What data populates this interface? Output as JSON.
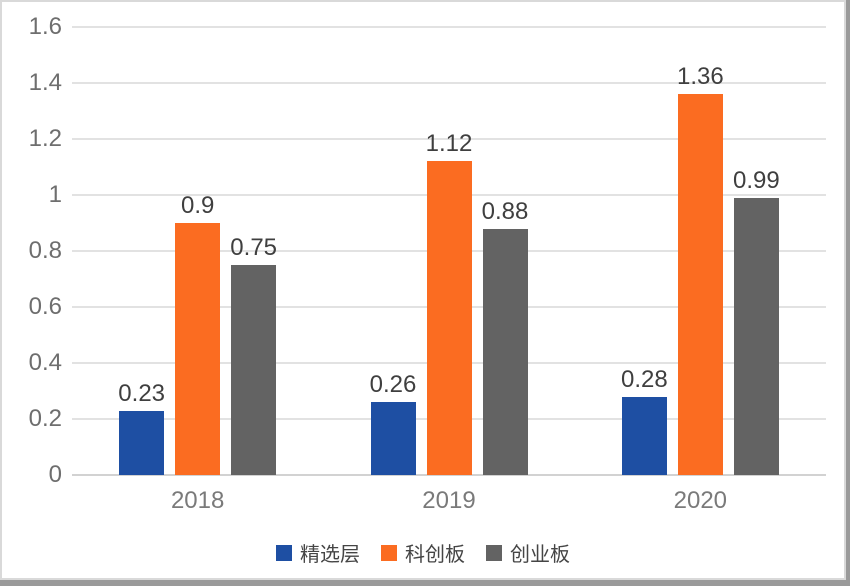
{
  "chart_data": {
    "type": "bar",
    "title": "",
    "xlabel": "",
    "ylabel": "",
    "categories": [
      "2018",
      "2019",
      "2020"
    ],
    "series": [
      {
        "name": "精选层",
        "color": "#1E4FA3",
        "values": [
          0.23,
          0.26,
          0.28
        ],
        "labels": [
          "0.23",
          "0.26",
          "0.28"
        ]
      },
      {
        "name": "科创板",
        "color": "#FB6C21",
        "values": [
          0.9,
          1.12,
          1.36
        ],
        "labels": [
          "0.9",
          "1.12",
          "1.36"
        ]
      },
      {
        "name": "创业板",
        "color": "#636363",
        "values": [
          0.75,
          0.88,
          0.99
        ],
        "labels": [
          "0.75",
          "0.88",
          "0.99"
        ]
      }
    ],
    "y_ticks": [
      "0",
      "0.2",
      "0.4",
      "0.6",
      "0.8",
      "1",
      "1.2",
      "1.4",
      "1.6"
    ],
    "ylim": [
      0,
      1.6
    ],
    "y_step": 0.2,
    "grid": true,
    "data_labels_shown": true,
    "legend_position": "bottom"
  }
}
